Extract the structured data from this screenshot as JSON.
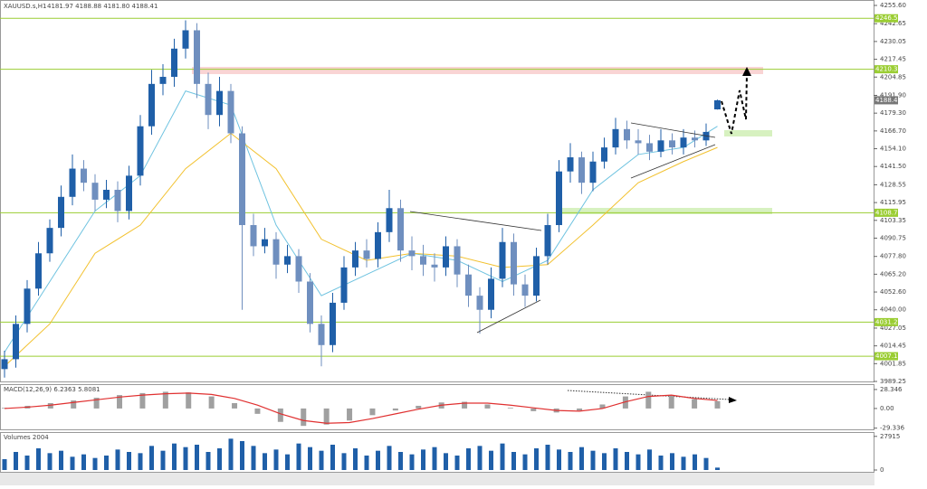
{
  "chart_data": {
    "type": "candlestick",
    "title": "XAUUSD.s,H1",
    "quote": "4181.97 4188.88 4181.80 4188.41",
    "bull_color": "#1f5fa8",
    "bear_color": "#6f8fbf",
    "ylim": [
      3989.25,
      4259.44
    ],
    "yticks": [
      {
        "value": 4255.6,
        "label": "4255.60"
      },
      4242.65,
      4230.05,
      4217.45,
      4204.85,
      {
        "value": 4191.9,
        "label": "4191.90"
      },
      {
        "value": 4179.3,
        "label": "4179.30"
      },
      {
        "value": 4166.7,
        "label": "4166.70"
      },
      {
        "value": 4154.1,
        "label": "4154.10"
      },
      {
        "value": 4141.5,
        "label": "4141.50"
      },
      4128.55,
      4115.95,
      4103.35,
      4090.75,
      {
        "value": 4077.8,
        "label": "4077.80"
      },
      {
        "value": 4065.2,
        "label": "4065.20"
      },
      {
        "value": 4052.6,
        "label": "4052.60"
      },
      {
        "value": 4040.0,
        "label": "4040.00"
      },
      4027.05,
      4014.45,
      4001.85,
      3989.25
    ],
    "levels": [
      {
        "value": 4246.5,
        "label": "4246.50"
      },
      {
        "value": 4210.38,
        "label": "4210.38"
      },
      {
        "value": 4108.73,
        "label": "4108.73"
      },
      {
        "value": 4031.26,
        "label": "4031.26"
      },
      {
        "value": 4007.13,
        "label": "4007.13"
      }
    ],
    "level_color": "#9acd32",
    "current_price": 4188.41,
    "candles": {
      "open": [
        3998,
        4005,
        4030,
        4055,
        4080,
        4098,
        4120,
        4140,
        4130,
        4118,
        4125,
        4110,
        4135,
        4170,
        4200,
        4205,
        4225,
        4238,
        4200,
        4178,
        4195,
        4165,
        4100,
        4085,
        4090,
        4072,
        4078,
        4060,
        4030,
        4015,
        4045,
        4070,
        4082,
        4076,
        4095,
        4112,
        4082,
        4078,
        4072,
        4070,
        4085,
        4065,
        4050,
        4040,
        4062,
        4088,
        4058,
        4050,
        4078,
        4100,
        4138,
        4148,
        4130,
        4145,
        4155,
        4168,
        4160,
        4158,
        4152,
        4160,
        4155,
        4162,
        4160,
        4181.97
      ],
      "high": [
        4011,
        4036,
        4061,
        4088,
        4104,
        4128,
        4150,
        4146,
        4136,
        4132,
        4131,
        4142,
        4178,
        4210,
        4214,
        4232,
        4245,
        4243,
        4208,
        4205,
        4200,
        4170,
        4108,
        4098,
        4095,
        4086,
        4083,
        4066,
        4036,
        4052,
        4078,
        4088,
        4090,
        4102,
        4125,
        4118,
        4092,
        4086,
        4080,
        4092,
        4090,
        4072,
        4056,
        4070,
        4098,
        4094,
        4065,
        4084,
        4108,
        4146,
        4158,
        4152,
        4152,
        4162,
        4176,
        4174,
        4168,
        4164,
        4168,
        4165,
        4168,
        4167,
        4172,
        4188.88
      ],
      "low": [
        3992,
        3999,
        4024,
        4050,
        4074,
        4092,
        4114,
        4124,
        4110,
        4112,
        4102,
        4104,
        4128,
        4164,
        4192,
        4198,
        4218,
        4190,
        4168,
        4170,
        4158,
        4040,
        4078,
        4080,
        4062,
        4066,
        4052,
        4024,
        4000,
        4010,
        4040,
        4064,
        4070,
        4070,
        4088,
        4074,
        4068,
        4064,
        4060,
        4064,
        4056,
        4042,
        4023,
        4034,
        4056,
        4050,
        4042,
        4046,
        4072,
        4095,
        4130,
        4122,
        4124,
        4140,
        4150,
        4154,
        4150,
        4146,
        4148,
        4150,
        4150,
        4155,
        4156,
        4181.8
      ],
      "close": [
        4005,
        4030,
        4055,
        4080,
        4098,
        4120,
        4140,
        4130,
        4118,
        4125,
        4110,
        4135,
        4170,
        4200,
        4205,
        4225,
        4238,
        4200,
        4178,
        4195,
        4165,
        4100,
        4085,
        4090,
        4072,
        4078,
        4060,
        4030,
        4015,
        4045,
        4070,
        4082,
        4076,
        4095,
        4112,
        4082,
        4078,
        4072,
        4070,
        4085,
        4065,
        4050,
        4040,
        4062,
        4088,
        4058,
        4050,
        4078,
        4100,
        4138,
        4148,
        4130,
        4145,
        4155,
        4168,
        4160,
        4158,
        4152,
        4160,
        4155,
        4162,
        4160,
        4166,
        4188.41
      ]
    },
    "ma_x": [
      0,
      4,
      8,
      12,
      16,
      20,
      24,
      28,
      32,
      36,
      40,
      44,
      48,
      52,
      56,
      60,
      63
    ],
    "series": [
      {
        "color": "#6fc3e0",
        "values": [
          4010,
          4060,
          4110,
          4135,
          4195,
          4185,
          4100,
          4050,
          4065,
          4080,
          4075,
          4060,
          4075,
          4125,
          4150,
          4155,
          4170
        ]
      },
      {
        "color": "#f2c12e",
        "values": [
          4000,
          4030,
          4080,
          4100,
          4140,
          4165,
          4140,
          4090,
          4075,
          4080,
          4078,
          4070,
          4072,
          4100,
          4130,
          4145,
          4155
        ]
      }
    ],
    "macd": {
      "title": "MACD(12,26,9) 6.2363 5.8081",
      "ylim": [
        -32.5,
        35
      ],
      "yticks": [
        28.346,
        {
          "value": 0,
          "label": "0.00"
        },
        -29.336
      ],
      "hist_color": "#a0a0a0",
      "signal_color": "#e03030",
      "hist": [
        1,
        4,
        8,
        12,
        16,
        20,
        23,
        25,
        24,
        18,
        8,
        -8,
        -20,
        -26,
        -24,
        -18,
        -10,
        -3,
        4,
        9,
        10,
        6,
        1,
        -4,
        -6,
        -3,
        6,
        18,
        25,
        20,
        14,
        11
      ],
      "signal": [
        0,
        2,
        5,
        9,
        13,
        17,
        20,
        22,
        23,
        21,
        15,
        5,
        -8,
        -18,
        -22,
        -21,
        -15,
        -8,
        -1,
        5,
        8,
        8,
        5,
        1,
        -3,
        -4,
        0,
        10,
        18,
        20,
        15,
        12
      ]
    },
    "volume": {
      "title": "Volumes 2004",
      "ylim": [
        0,
        30000
      ],
      "yticks": [
        27915,
        0
      ],
      "color": "#1f5fa8",
      "values": [
        9000,
        15000,
        12000,
        18000,
        14000,
        16000,
        11000,
        13000,
        10000,
        12000,
        17000,
        15000,
        14000,
        20000,
        16000,
        22000,
        19000,
        21000,
        15000,
        18000,
        26000,
        24000,
        20000,
        14000,
        17000,
        13000,
        22000,
        19000,
        16000,
        21000,
        14000,
        18000,
        12000,
        16000,
        20000,
        15000,
        13000,
        17000,
        19000,
        14000,
        12000,
        18000,
        20000,
        16000,
        22000,
        15000,
        13000,
        18000,
        21000,
        17000,
        15000,
        19000,
        16000,
        14000,
        18000,
        15000,
        13000,
        17000,
        12000,
        14000,
        11000,
        13000,
        10000,
        2004
      ]
    }
  }
}
